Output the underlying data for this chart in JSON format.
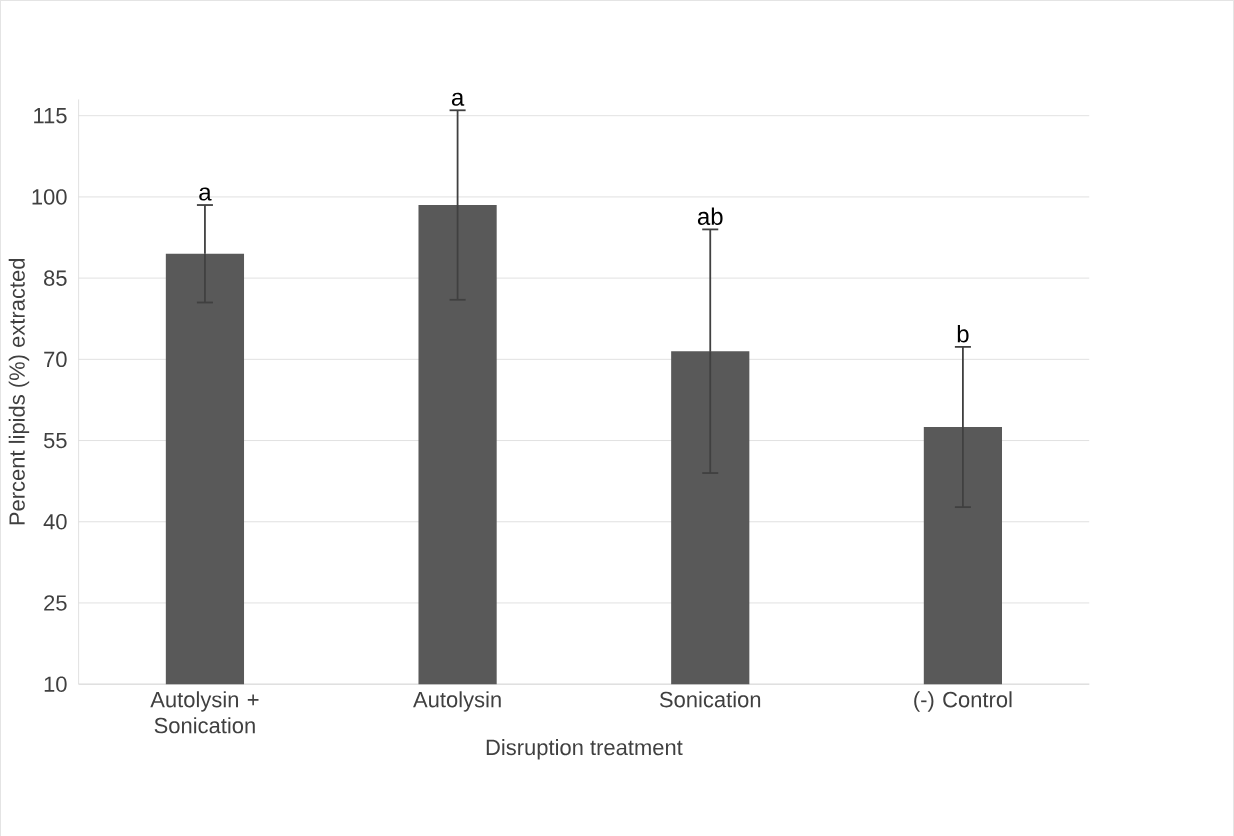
{
  "chart_data": {
    "type": "bar",
    "xlabel": "Disruption treatment",
    "ylabel": "Percent lipids (%) extracted",
    "categories": [
      "Autolysin + Sonication",
      "Autolysin",
      "Sonication",
      "(-) Control"
    ],
    "values": [
      89.5,
      98.5,
      71.5,
      57.5
    ],
    "errors": [
      9,
      17.5,
      22.5,
      14.8
    ],
    "color": "#595959",
    "ylim": [
      10,
      118
    ],
    "yticks": [
      10,
      25,
      40,
      55,
      70,
      85,
      100,
      115
    ],
    "grid": "y",
    "annotations": [
      {
        "text": "a",
        "x": "Autolysin + Sonication",
        "y": 98.5
      },
      {
        "text": "a",
        "x": "Autolysin",
        "y": 116
      },
      {
        "text": "ab",
        "x": "Sonication",
        "y": 94
      },
      {
        "text": "b",
        "x": "(-) Control",
        "y": 72.3
      }
    ]
  }
}
